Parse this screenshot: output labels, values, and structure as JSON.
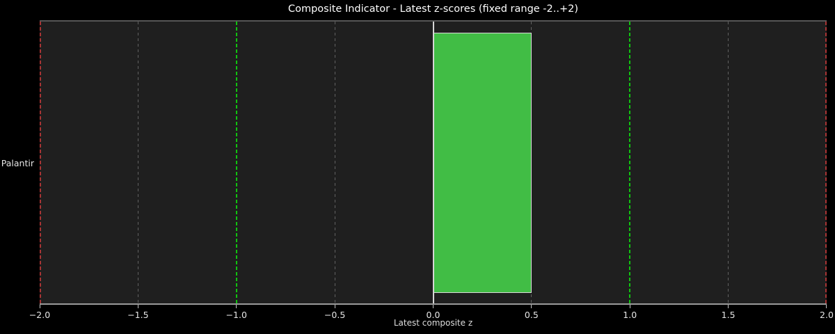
{
  "chart_data": {
    "type": "bar",
    "orientation": "horizontal",
    "title": "Composite Indicator - Latest z-scores (fixed range -2..+2)",
    "xlabel": "Latest composite z",
    "categories": [
      "Palantir"
    ],
    "values": [
      0.5
    ],
    "xlim": [
      -2,
      2
    ],
    "xticks": [
      -2.0,
      -1.5,
      -1.0,
      -0.5,
      0.0,
      0.5,
      1.0,
      1.5,
      2.0
    ],
    "xtick_labels": [
      "−2.0",
      "−1.5",
      "−1.0",
      "−0.5",
      "0.0",
      "0.5",
      "1.0",
      "1.5",
      "2.0"
    ],
    "grid": true,
    "legend": "none",
    "reference_lines": [
      {
        "x": -2,
        "style": "dashed",
        "color": "#a83434",
        "name": "lower-bound"
      },
      {
        "x": -1,
        "style": "dashed",
        "color": "#10c410",
        "name": "lower-threshold"
      },
      {
        "x": 0,
        "style": "solid",
        "color": "#d6d6d6",
        "name": "zero"
      },
      {
        "x": 1,
        "style": "dashed",
        "color": "#10c410",
        "name": "upper-threshold"
      },
      {
        "x": 2,
        "style": "dashed",
        "color": "#a83434",
        "name": "upper-bound"
      }
    ],
    "colors": {
      "bar": "#41bd45",
      "bar_edge": "#d9d9d9",
      "figure_bg": "#000000",
      "axes_bg": "#1f1f1f",
      "grid": "#616161",
      "text": "#e6e6e6"
    }
  }
}
